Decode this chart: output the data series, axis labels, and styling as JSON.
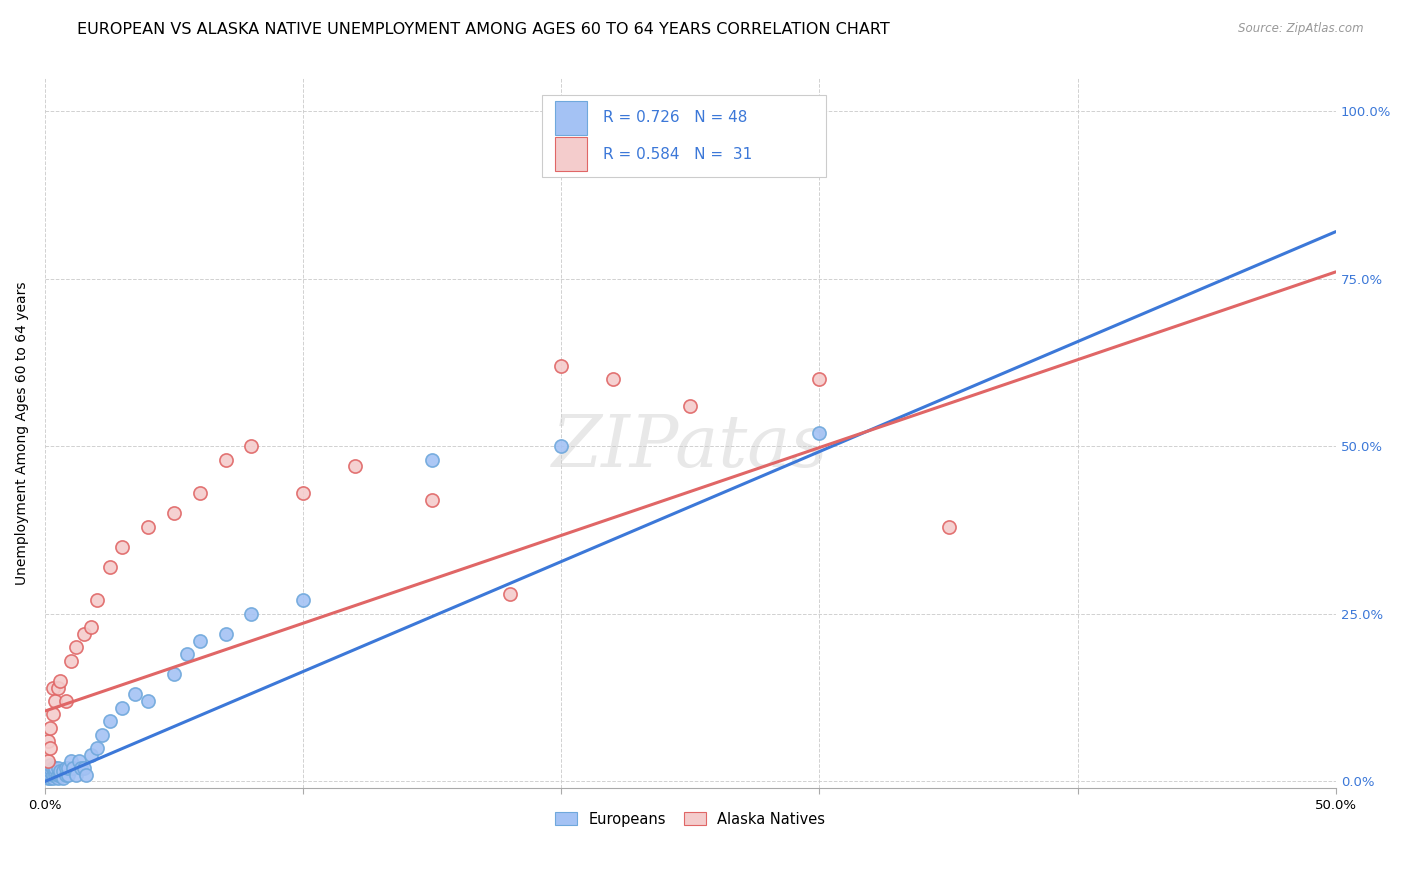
{
  "title": "EUROPEAN VS ALASKA NATIVE UNEMPLOYMENT AMONG AGES 60 TO 64 YEARS CORRELATION CHART",
  "source": "Source: ZipAtlas.com",
  "ylabel": "Unemployment Among Ages 60 to 64 years",
  "xlim": [
    0.0,
    0.5
  ],
  "ylim": [
    -0.01,
    1.05
  ],
  "x_ticks": [
    0.0,
    0.1,
    0.2,
    0.3,
    0.4,
    0.5
  ],
  "x_tick_labels": [
    "0.0%",
    "",
    "",
    "",
    "",
    "50.0%"
  ],
  "y_ticks": [
    0.0,
    0.25,
    0.5,
    0.75,
    1.0
  ],
  "y_tick_labels_right": [
    "0.0%",
    "25.0%",
    "50.0%",
    "75.0%",
    "100.0%"
  ],
  "blue_color": "#a4c2f4",
  "blue_edge_color": "#6fa8dc",
  "pink_color": "#f4cccc",
  "pink_edge_color": "#e06666",
  "blue_line_color": "#3c78d8",
  "pink_line_color": "#e06666",
  "right_axis_color": "#3c78d8",
  "legend_text_color": "#3c78d8",
  "blue_scatter_x": [
    0.001,
    0.001,
    0.001,
    0.002,
    0.002,
    0.002,
    0.002,
    0.002,
    0.003,
    0.003,
    0.003,
    0.004,
    0.004,
    0.004,
    0.005,
    0.005,
    0.005,
    0.006,
    0.006,
    0.007,
    0.007,
    0.008,
    0.008,
    0.009,
    0.009,
    0.01,
    0.011,
    0.012,
    0.013,
    0.014,
    0.015,
    0.016,
    0.018,
    0.02,
    0.022,
    0.025,
    0.03,
    0.035,
    0.04,
    0.05,
    0.055,
    0.06,
    0.07,
    0.08,
    0.1,
    0.15,
    0.2,
    0.3
  ],
  "blue_scatter_y": [
    0.005,
    0.01,
    0.015,
    0.005,
    0.01,
    0.015,
    0.02,
    0.025,
    0.005,
    0.01,
    0.02,
    0.01,
    0.015,
    0.02,
    0.005,
    0.01,
    0.02,
    0.01,
    0.015,
    0.005,
    0.015,
    0.01,
    0.02,
    0.01,
    0.02,
    0.03,
    0.02,
    0.01,
    0.03,
    0.02,
    0.02,
    0.01,
    0.04,
    0.05,
    0.07,
    0.09,
    0.11,
    0.13,
    0.12,
    0.16,
    0.19,
    0.21,
    0.22,
    0.25,
    0.27,
    0.48,
    0.5,
    0.52
  ],
  "pink_scatter_x": [
    0.001,
    0.001,
    0.002,
    0.002,
    0.003,
    0.003,
    0.004,
    0.005,
    0.006,
    0.008,
    0.01,
    0.012,
    0.015,
    0.018,
    0.02,
    0.025,
    0.03,
    0.04,
    0.05,
    0.06,
    0.07,
    0.08,
    0.1,
    0.12,
    0.15,
    0.18,
    0.2,
    0.22,
    0.25,
    0.3,
    0.35
  ],
  "pink_scatter_y": [
    0.03,
    0.06,
    0.05,
    0.08,
    0.1,
    0.14,
    0.12,
    0.14,
    0.15,
    0.12,
    0.18,
    0.2,
    0.22,
    0.23,
    0.27,
    0.32,
    0.35,
    0.38,
    0.4,
    0.43,
    0.48,
    0.5,
    0.43,
    0.47,
    0.42,
    0.28,
    0.62,
    0.6,
    0.56,
    0.6,
    0.38
  ],
  "blue_trend_x": [
    0.0,
    0.5
  ],
  "blue_trend_y": [
    0.0,
    0.82
  ],
  "pink_trend_x": [
    0.0,
    0.5
  ],
  "pink_trend_y": [
    0.105,
    0.76
  ],
  "watermark_text": "ZIPatas",
  "watermark_font": "serif",
  "title_fontsize": 11.5,
  "axis_label_fontsize": 10,
  "tick_fontsize": 9.5,
  "legend_fontsize": 11
}
